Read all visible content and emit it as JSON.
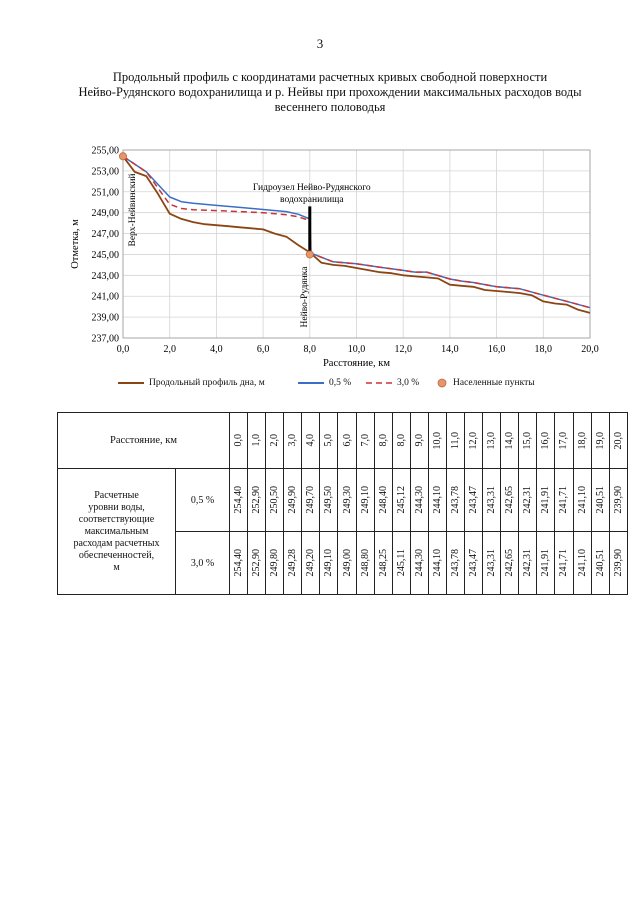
{
  "page": {
    "number": "3"
  },
  "title": {
    "line1": "Продольный профиль с координатами расчетных кривых свободной поверхности",
    "line2": "Нейво-Рудянского водохранилища и р. Нейвы при прохождении максимальных расходов воды",
    "line3": "весеннего половодья"
  },
  "chart_data": {
    "type": "line",
    "xlabel": "Расстояние, км",
    "ylabel": "Отметка, м",
    "xlim": [
      0,
      20
    ],
    "ylim": [
      237,
      255
    ],
    "x_ticks": [
      "0,0",
      "2,0",
      "4,0",
      "6,0",
      "8,0",
      "10,0",
      "12,0",
      "14,0",
      "16,0",
      "18,0",
      "20,0"
    ],
    "y_ticks": [
      "237,00",
      "239,00",
      "241,00",
      "243,00",
      "245,00",
      "247,00",
      "249,00",
      "251,00",
      "253,00",
      "255,00"
    ],
    "series": [
      {
        "name": "Продольный профиль дна, м",
        "color": "#8B4513",
        "dash": "none",
        "x": [
          0,
          0.5,
          1,
          1.5,
          2,
          2.5,
          3,
          3.5,
          4,
          4.5,
          5,
          5.5,
          6,
          6.5,
          7,
          7.5,
          8,
          8.5,
          9,
          9.5,
          10,
          10.5,
          11,
          11.5,
          12,
          12.5,
          13,
          13.5,
          14,
          14.5,
          15,
          15.5,
          16,
          16.5,
          17,
          17.5,
          18,
          18.5,
          19,
          19.5,
          20
        ],
        "y": [
          254.4,
          252.9,
          252.5,
          250.8,
          248.9,
          248.4,
          248.1,
          247.9,
          247.8,
          247.7,
          247.6,
          247.5,
          247.4,
          247.0,
          246.7,
          245.9,
          245.2,
          244.2,
          244.0,
          243.9,
          243.7,
          243.5,
          243.3,
          243.2,
          243.0,
          242.9,
          242.8,
          242.7,
          242.1,
          242.0,
          241.9,
          241.6,
          241.5,
          241.4,
          241.3,
          241.1,
          240.5,
          240.3,
          240.2,
          239.7,
          239.4
        ]
      },
      {
        "name": "0,5 %",
        "color": "#3A6EC8",
        "dash": "none",
        "x": [
          0,
          1,
          2,
          2.5,
          3,
          4,
          5,
          6,
          7,
          7.5,
          8,
          8.05,
          9,
          10,
          11,
          12,
          12.5,
          13,
          14,
          14.5,
          15,
          16,
          17,
          18,
          19,
          20
        ],
        "y": [
          254.4,
          252.9,
          250.5,
          250.05,
          249.9,
          249.7,
          249.5,
          249.3,
          249.1,
          248.85,
          248.4,
          245.12,
          244.3,
          244.1,
          243.78,
          243.47,
          243.31,
          243.31,
          242.65,
          242.45,
          242.31,
          241.91,
          241.71,
          241.1,
          240.51,
          239.9
        ]
      },
      {
        "name": "3,0 %",
        "color": "#CC3333",
        "dash": "6,4",
        "x": [
          0,
          1,
          2,
          2.5,
          3,
          4,
          5,
          6,
          7,
          7.5,
          8,
          8.05,
          9,
          10,
          11,
          12,
          12.5,
          13,
          14,
          14.5,
          15,
          16,
          17,
          18,
          19,
          20
        ],
        "y": [
          254.4,
          252.9,
          249.8,
          249.4,
          249.28,
          249.2,
          249.1,
          249.0,
          248.8,
          248.6,
          248.25,
          245.11,
          244.3,
          244.1,
          243.78,
          243.47,
          243.31,
          243.31,
          242.65,
          242.45,
          242.31,
          241.91,
          241.71,
          241.1,
          240.51,
          239.9
        ]
      },
      {
        "name": "Населенные пункты",
        "color": "#E8956A",
        "marker": "circle",
        "x": [
          0,
          8
        ],
        "y": [
          254.4,
          245.0
        ]
      }
    ],
    "annotations": [
      {
        "text": "Верх-Нейвинский",
        "x": 0.6,
        "y": 250.5,
        "rotation": "vertical"
      },
      {
        "text": "Гидроузел Нейво-Рудянского водохранилища",
        "lines": [
          "Гидроузел Нейво-Рудянского",
          "водохранилища"
        ],
        "x": 8.0,
        "y": 252.0
      },
      {
        "text": "Нейво-Рудянка",
        "x": 8.0,
        "y": 241.5,
        "rotation": "vertical"
      }
    ],
    "dam": {
      "x": 8.0,
      "y_from": 245.0,
      "y_to": 249.6
    },
    "grid": true,
    "legend_position": "bottom"
  },
  "table": {
    "header_label": "Расстояние, км",
    "distances": [
      "0,0",
      "1,0",
      "2,0",
      "3,0",
      "4,0",
      "5,0",
      "6,0",
      "7,0",
      "8,0",
      "8,0",
      "9,0",
      "10,0",
      "11,0",
      "12,0",
      "13,0",
      "14,0",
      "15,0",
      "16,0",
      "17,0",
      "18,0",
      "19,0",
      "20,0"
    ],
    "row_label_lines": [
      "Расчетные",
      "уровни воды,",
      "соответствующие",
      "максимальным",
      "расходам расчетных",
      "обеспеченностей,",
      "м"
    ],
    "rows": [
      {
        "label": "0,5 %",
        "values": [
          "254,40",
          "252,90",
          "250,50",
          "249,90",
          "249,70",
          "249,50",
          "249,30",
          "249,10",
          "248,40",
          "245,12",
          "244,30",
          "244,10",
          "243,78",
          "243,47",
          "243,31",
          "242,65",
          "242,31",
          "241,91",
          "241,71",
          "241,10",
          "240,51",
          "239,90"
        ]
      },
      {
        "label": "3,0 %",
        "values": [
          "254,40",
          "252,90",
          "249,80",
          "249,28",
          "249,20",
          "249,10",
          "249,00",
          "248,80",
          "248,25",
          "245,11",
          "244,30",
          "244,10",
          "243,78",
          "243,47",
          "243,31",
          "242,65",
          "242,31",
          "241,91",
          "241,71",
          "241,10",
          "240,51",
          "239,90"
        ]
      }
    ]
  }
}
